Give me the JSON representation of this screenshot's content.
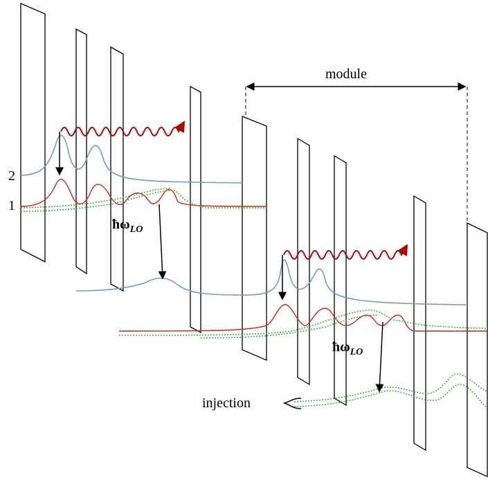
{
  "labels": {
    "module": "module",
    "level_upper": "2",
    "level_lower": "1",
    "phonon_1": {
      "symbol": "ħω",
      "subscript": "LO"
    },
    "phonon_2": {
      "symbol": "ħω",
      "subscript": "LO"
    },
    "injection": "injection"
  }
}
